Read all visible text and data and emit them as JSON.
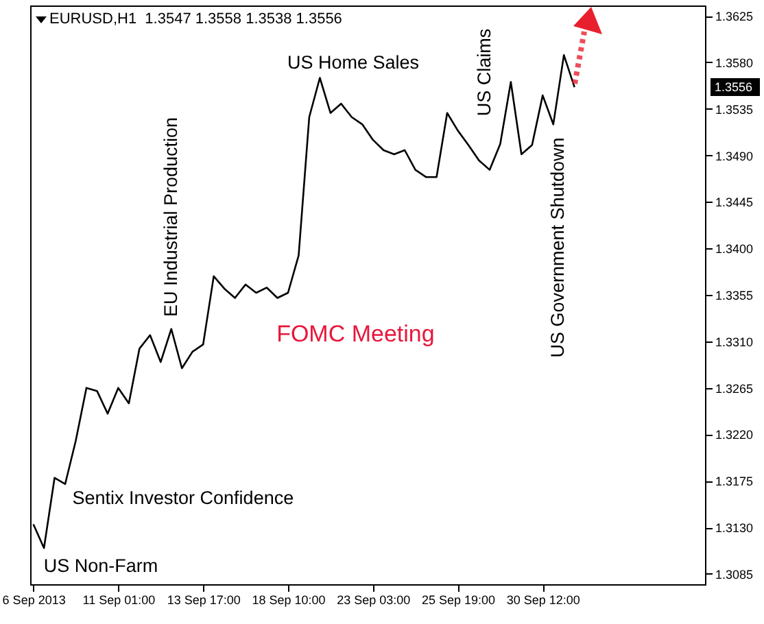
{
  "chart_data": {
    "type": "line",
    "title": "EURUSD,H1  1.3547 1.3558 1.3538 1.3556",
    "categories": [
      "6 Sep 2013",
      null,
      null,
      null,
      null,
      null,
      null,
      null,
      "11 Sep 01:00",
      null,
      null,
      null,
      null,
      null,
      null,
      null,
      "13 Sep 17:00",
      null,
      null,
      null,
      null,
      null,
      null,
      null,
      "18 Sep 10:00",
      null,
      null,
      null,
      null,
      null,
      null,
      null,
      "23 Sep 03:00",
      null,
      null,
      null,
      null,
      null,
      null,
      null,
      "25 Sep 19:00",
      null,
      null,
      null,
      null,
      null,
      null,
      null,
      "30 Sep 12:00",
      null,
      null,
      null,
      null,
      null,
      null,
      null,
      null,
      null,
      null,
      null,
      null,
      null,
      null,
      null
    ],
    "series": [
      {
        "color": "#000000",
        "values": [
          1.3133,
          1.311,
          1.3178,
          1.3172,
          1.3214,
          1.3265,
          1.3262,
          1.324,
          1.3265,
          1.325,
          1.3303,
          1.3316,
          1.329,
          1.3322,
          1.3284,
          1.33,
          1.3307,
          1.3373,
          1.3361,
          1.3352,
          1.3365,
          1.3357,
          1.3362,
          1.3352,
          1.3357,
          1.3393,
          1.3527,
          1.3565,
          1.3531,
          1.354,
          1.3527,
          1.352,
          1.3505,
          1.3495,
          1.3491,
          1.3495,
          1.3476,
          1.3469,
          1.3469,
          1.3531,
          1.3514,
          1.35,
          1.3485,
          1.3476,
          1.3501,
          1.3561,
          1.3491,
          1.35,
          1.3548,
          1.352,
          1.3587,
          1.3556,
          null,
          null,
          null,
          null,
          null,
          null,
          null,
          null,
          null,
          null,
          null,
          null
        ]
      }
    ],
    "ylim": [
      1.3075,
      1.3635
    ],
    "yticks": [
      1.3085,
      {
        "value": 1.313,
        "label": "1.3130"
      },
      1.3175,
      {
        "value": 1.322,
        "label": "1.3220"
      },
      1.3265,
      {
        "value": 1.331,
        "label": "1.3310"
      },
      1.3355,
      {
        "value": 1.34,
        "label": "1.3400"
      },
      1.3445,
      {
        "value": 1.349,
        "label": "1.3490"
      },
      1.3535,
      {
        "value": 1.358,
        "label": "1.3580"
      },
      1.3625
    ],
    "annotations": [
      "US Non-Farm",
      "Sentix Investor Confidence",
      "EU Industrial Production",
      "FOMC Meeting",
      "US Home Sales",
      "US Claims",
      "US Government Shutdown",
      "1.3556"
    ]
  }
}
